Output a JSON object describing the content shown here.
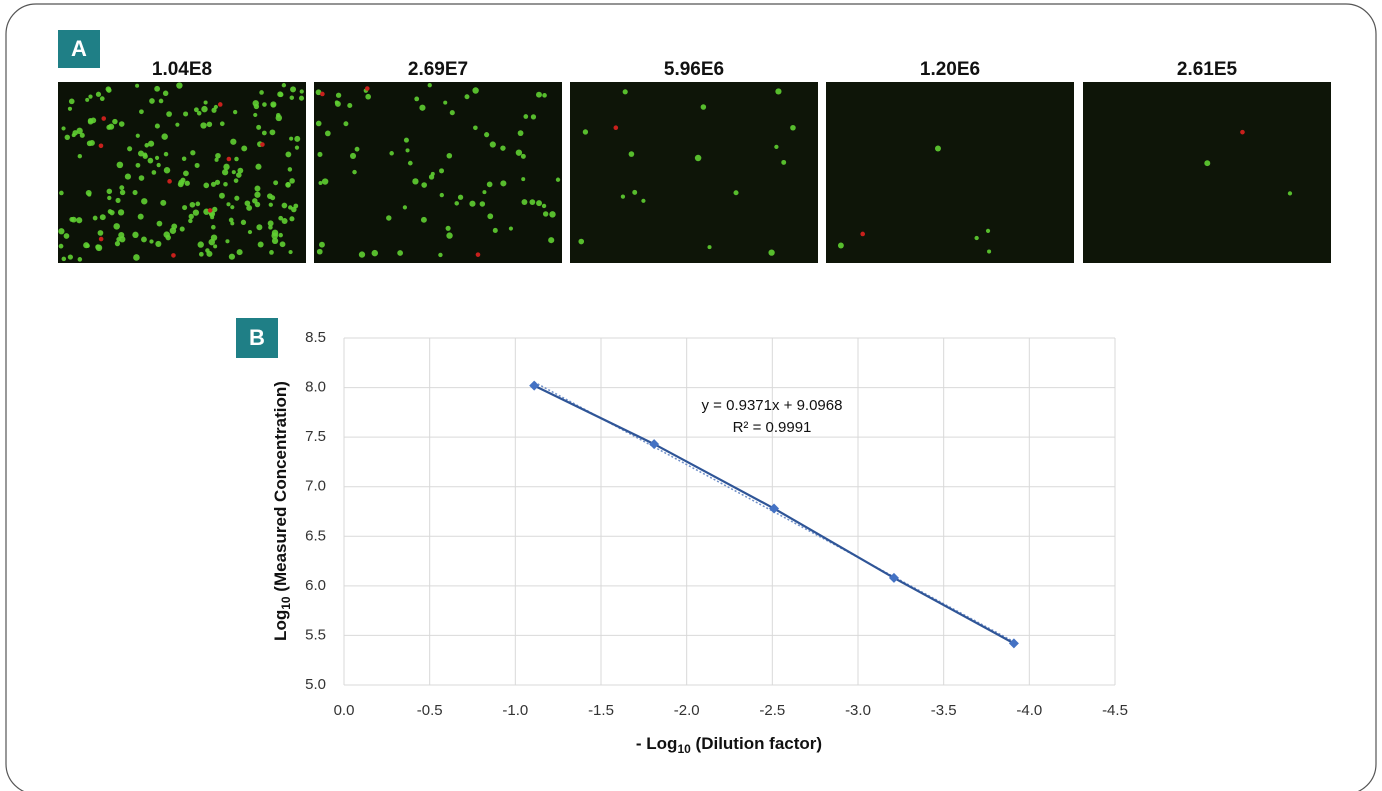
{
  "panel_a": {
    "label": "A",
    "images": [
      "1.04E8",
      "2.69E7",
      "5.96E6",
      "1.20E6",
      "2.61E5"
    ]
  },
  "chart_data": {
    "type": "line",
    "panel_label": "B",
    "xlabel": {
      "prefix": "- Log",
      "sub": "10",
      "rest": " (Dilution factor)"
    },
    "ylabel": {
      "prefix": "Log",
      "sub": "10",
      "rest": " (Measured Concentration)"
    },
    "x": [
      -1.11,
      -1.81,
      -2.51,
      -3.21,
      -3.91
    ],
    "series": [
      {
        "color": "#2f5597",
        "values": [
          8.02,
          7.43,
          6.78,
          6.08,
          5.42
        ]
      }
    ],
    "xlim": [
      0,
      -4.5
    ],
    "xticks": [
      {
        "value": 0,
        "label": "0.0"
      },
      -0.5,
      {
        "value": -1,
        "label": "-1.0"
      },
      -1.5,
      {
        "value": -2,
        "label": "-2.0"
      },
      -2.5,
      {
        "value": -3,
        "label": "-3.0"
      },
      -3.5,
      {
        "value": -4,
        "label": "-4.0"
      },
      -4.5
    ],
    "ylim": [
      5,
      8.5
    ],
    "yticks": [
      {
        "value": 5,
        "label": "5.0"
      },
      5.5,
      {
        "value": 6,
        "label": "6.0"
      },
      6.5,
      {
        "value": 7,
        "label": "7.0"
      },
      7.5,
      {
        "value": 8,
        "label": "8.0"
      },
      8.5
    ],
    "grid": true,
    "annotations": [
      "y = 0.9371x + 9.0968",
      "R² = 0.9991"
    ]
  }
}
